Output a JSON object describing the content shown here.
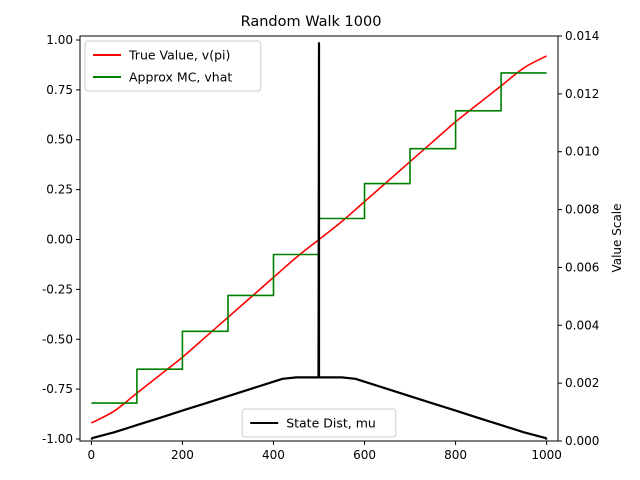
{
  "chart_data": {
    "type": "line",
    "title": "Random Walk 1000",
    "xlabel": "",
    "ylabel": "",
    "y2label": "Value Scale",
    "xlim": [
      -25,
      1025
    ],
    "ylim": [
      -1.01,
      1.02
    ],
    "y2lim": [
      0,
      0.014
    ],
    "xticks": [
      "0",
      "200",
      "400",
      "600",
      "800",
      "1000"
    ],
    "yticks": [
      "-1.00",
      "-0.75",
      "-0.50",
      "-0.25",
      "0.00",
      "0.25",
      "0.50",
      "0.75",
      "1.00"
    ],
    "y2ticks": [
      "0.000",
      "0.002",
      "0.004",
      "0.006",
      "0.008",
      "0.010",
      "0.012",
      "0.014"
    ],
    "series": [
      {
        "name": "True Value, v(pi)",
        "axis": "left",
        "color": "#ff0000",
        "style": "smooth",
        "x": [
          0,
          50,
          100,
          150,
          200,
          250,
          300,
          350,
          400,
          450,
          500,
          550,
          600,
          650,
          700,
          750,
          800,
          850,
          900,
          950,
          1000
        ],
        "y": [
          -0.92,
          -0.86,
          -0.77,
          -0.68,
          -0.59,
          -0.49,
          -0.39,
          -0.29,
          -0.19,
          -0.09,
          0.0,
          0.09,
          0.19,
          0.29,
          0.39,
          0.49,
          0.59,
          0.68,
          0.77,
          0.86,
          0.92
        ]
      },
      {
        "name": "Approx MC, vhat",
        "axis": "left",
        "color": "#008000",
        "style": "step",
        "x": [
          0,
          100,
          200,
          300,
          400,
          500,
          600,
          700,
          800,
          900,
          1000
        ],
        "y": [
          -0.82,
          -0.65,
          -0.46,
          -0.28,
          -0.075,
          0.105,
          0.28,
          0.455,
          0.645,
          0.835,
          0.835
        ]
      },
      {
        "name": "State Dist, mu",
        "axis": "right",
        "color": "#000000",
        "style": "line",
        "x": [
          0,
          2,
          50,
          100,
          150,
          200,
          250,
          300,
          350,
          400,
          420,
          450,
          480,
          499,
          500,
          500,
          501,
          520,
          550,
          580,
          600,
          650,
          700,
          750,
          800,
          850,
          900,
          950,
          998,
          1000
        ],
        "y": [
          5e-05,
          0.0001,
          0.0003,
          0.00055,
          0.0008,
          0.00105,
          0.0013,
          0.00155,
          0.0018,
          0.00205,
          0.00215,
          0.0022,
          0.0022,
          0.0022,
          0.01375,
          0.0022,
          0.0022,
          0.0022,
          0.0022,
          0.00215,
          0.00205,
          0.0018,
          0.00155,
          0.0013,
          0.00105,
          0.0008,
          0.00055,
          0.0003,
          0.0001,
          5e-05
        ]
      }
    ],
    "legends": [
      {
        "placement": "upper-left",
        "entries": [
          "True Value, v(pi)",
          "Approx MC, vhat"
        ]
      },
      {
        "placement": "lower-center",
        "entries": [
          "State Dist, mu"
        ]
      }
    ]
  }
}
